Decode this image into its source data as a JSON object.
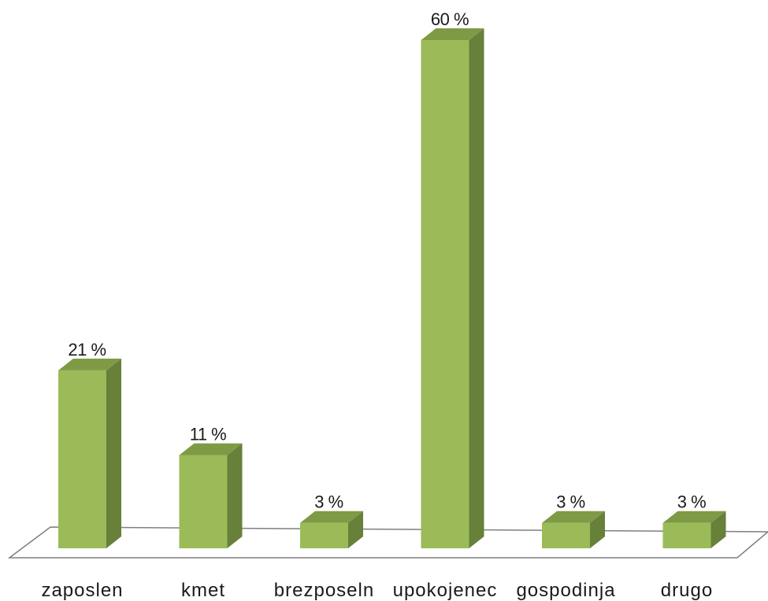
{
  "chart_data": {
    "type": "bar",
    "style": "3d-column",
    "categories": [
      "zaposlen",
      "kmet",
      "brezposeln",
      "upokojenec",
      "gospodinja",
      "drugo"
    ],
    "values": [
      21,
      11,
      3,
      60,
      3,
      3
    ],
    "data_labels": [
      "21 %",
      "11 %",
      "3 %",
      "60 %",
      "3 %",
      "3 %"
    ],
    "unit": "%",
    "ylim": [
      0,
      60
    ],
    "grid": false,
    "legend": "none",
    "title": "",
    "xlabel": "",
    "ylabel": ""
  },
  "colors": {
    "bar_front": "#9bbb59",
    "bar_side": "#67803a",
    "bar_top": "#7e9a45",
    "floor_stroke": "#7f7f7f",
    "floor_fill": "#ffffff"
  }
}
